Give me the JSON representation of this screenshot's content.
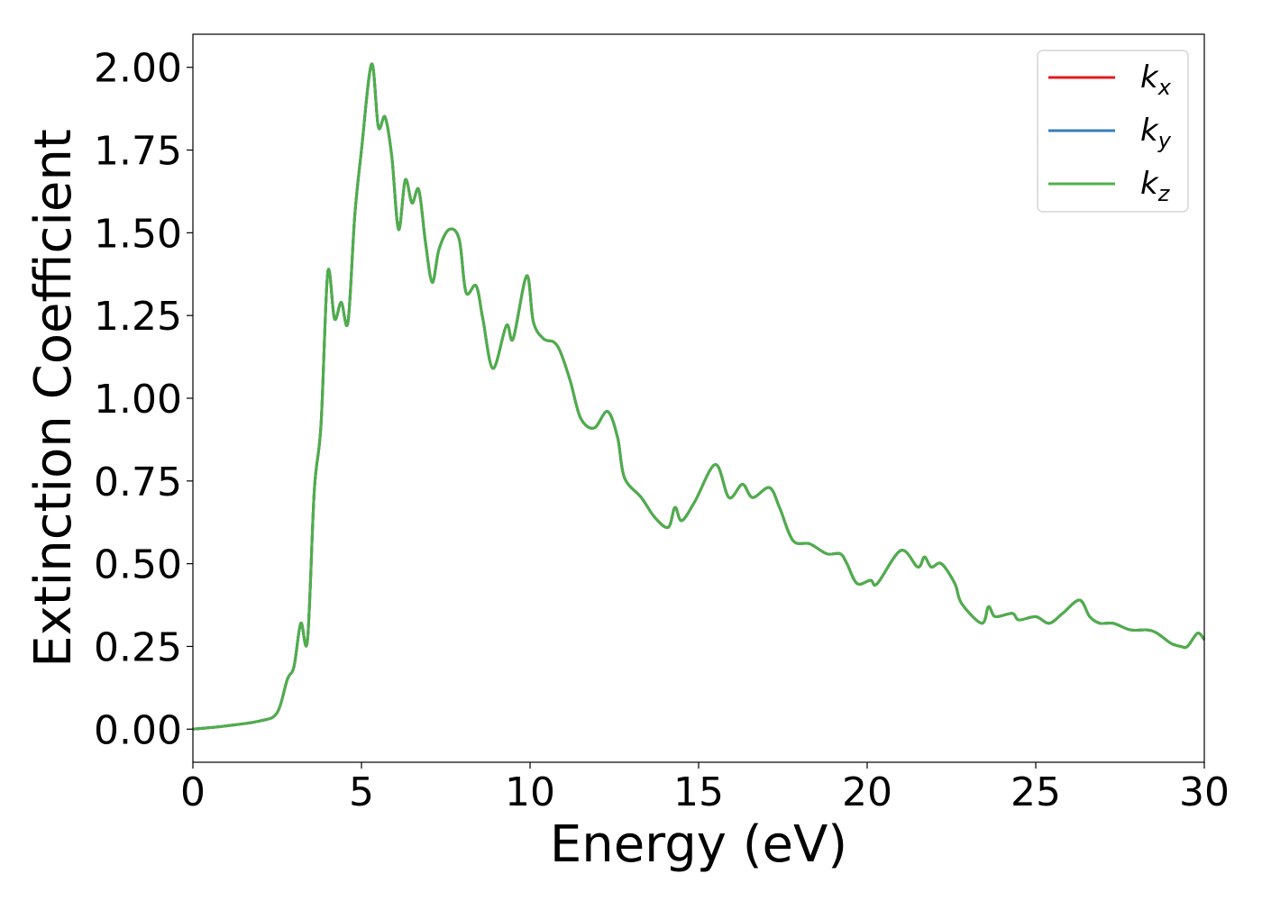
{
  "chart_data": {
    "type": "line",
    "xlabel": "Energy (eV)",
    "ylabel": "Extinction Coefficient",
    "xlim": [
      0,
      30
    ],
    "ylim": [
      -0.1,
      2.1
    ],
    "xticks": [
      0,
      5,
      10,
      15,
      20,
      25,
      30
    ],
    "xtick_labels": [
      "0",
      "5",
      "10",
      "15",
      "20",
      "25",
      "30"
    ],
    "yticks": [
      0,
      0.25,
      0.5,
      0.75,
      1.0,
      1.25,
      1.5,
      1.75,
      2.0
    ],
    "ytick_labels": [
      "0.00",
      "0.25",
      "0.50",
      "0.75",
      "1.00",
      "1.25",
      "1.50",
      "1.75",
      "2.00"
    ],
    "grid": false,
    "legend_position": "top-right",
    "x": [
      0,
      1.0,
      2.0,
      2.5,
      2.8,
      3.0,
      3.2,
      3.4,
      3.6,
      3.8,
      4.0,
      4.2,
      4.4,
      4.6,
      4.8,
      5.0,
      5.3,
      5.5,
      5.7,
      5.9,
      6.1,
      6.3,
      6.5,
      6.7,
      6.9,
      7.1,
      7.3,
      7.6,
      7.9,
      8.1,
      8.4,
      8.6,
      8.9,
      9.3,
      9.5,
      9.9,
      10.1,
      10.4,
      10.7,
      10.9,
      11.2,
      11.5,
      11.9,
      12.3,
      12.6,
      12.8,
      13.3,
      13.7,
      14.1,
      14.3,
      14.5,
      14.9,
      15.5,
      15.9,
      16.3,
      16.6,
      17.1,
      17.4,
      17.8,
      18.3,
      18.8,
      19.2,
      19.4,
      19.7,
      20.1,
      20.3,
      21.0,
      21.5,
      21.7,
      21.9,
      22.2,
      22.6,
      22.8,
      23.4,
      23.6,
      23.8,
      24.3,
      24.5,
      25.0,
      25.4,
      25.8,
      26.3,
      26.6,
      26.9,
      27.3,
      27.8,
      28.3,
      28.6,
      29.0,
      29.3,
      29.5,
      29.8,
      30.0
    ],
    "series": [
      {
        "name": "k_x",
        "color": "#e41a1c",
        "values": [
          0.0,
          0.01,
          0.025,
          0.05,
          0.15,
          0.19,
          0.32,
          0.27,
          0.72,
          0.92,
          1.38,
          1.24,
          1.29,
          1.23,
          1.55,
          1.75,
          2.01,
          1.82,
          1.85,
          1.73,
          1.51,
          1.66,
          1.59,
          1.63,
          1.47,
          1.35,
          1.45,
          1.51,
          1.48,
          1.32,
          1.34,
          1.24,
          1.09,
          1.22,
          1.18,
          1.37,
          1.23,
          1.18,
          1.17,
          1.14,
          1.05,
          0.94,
          0.91,
          0.96,
          0.88,
          0.76,
          0.7,
          0.64,
          0.61,
          0.67,
          0.63,
          0.69,
          0.8,
          0.7,
          0.74,
          0.7,
          0.73,
          0.67,
          0.57,
          0.56,
          0.53,
          0.53,
          0.5,
          0.44,
          0.45,
          0.44,
          0.54,
          0.49,
          0.52,
          0.49,
          0.5,
          0.44,
          0.38,
          0.32,
          0.37,
          0.34,
          0.35,
          0.33,
          0.34,
          0.32,
          0.35,
          0.39,
          0.34,
          0.32,
          0.32,
          0.3,
          0.3,
          0.29,
          0.26,
          0.25,
          0.25,
          0.29,
          0.27
        ]
      },
      {
        "name": "k_y",
        "color": "#377eb8",
        "values": [
          0.0,
          0.01,
          0.025,
          0.05,
          0.15,
          0.19,
          0.32,
          0.27,
          0.72,
          0.92,
          1.38,
          1.24,
          1.29,
          1.23,
          1.55,
          1.75,
          2.01,
          1.82,
          1.85,
          1.73,
          1.51,
          1.66,
          1.59,
          1.63,
          1.47,
          1.35,
          1.45,
          1.51,
          1.48,
          1.32,
          1.34,
          1.24,
          1.09,
          1.22,
          1.18,
          1.37,
          1.23,
          1.18,
          1.17,
          1.14,
          1.05,
          0.94,
          0.91,
          0.96,
          0.88,
          0.76,
          0.7,
          0.64,
          0.61,
          0.67,
          0.63,
          0.69,
          0.8,
          0.7,
          0.74,
          0.7,
          0.73,
          0.67,
          0.57,
          0.56,
          0.53,
          0.53,
          0.5,
          0.44,
          0.45,
          0.44,
          0.54,
          0.49,
          0.52,
          0.49,
          0.5,
          0.44,
          0.38,
          0.32,
          0.37,
          0.34,
          0.35,
          0.33,
          0.34,
          0.32,
          0.35,
          0.39,
          0.34,
          0.32,
          0.32,
          0.3,
          0.3,
          0.29,
          0.26,
          0.25,
          0.25,
          0.29,
          0.27
        ]
      },
      {
        "name": "k_z",
        "color": "#4daf4a",
        "values": [
          0.0,
          0.01,
          0.025,
          0.05,
          0.15,
          0.19,
          0.32,
          0.27,
          0.72,
          0.92,
          1.38,
          1.24,
          1.29,
          1.23,
          1.55,
          1.75,
          2.01,
          1.82,
          1.85,
          1.73,
          1.51,
          1.66,
          1.59,
          1.63,
          1.47,
          1.35,
          1.45,
          1.51,
          1.48,
          1.32,
          1.34,
          1.24,
          1.09,
          1.22,
          1.18,
          1.37,
          1.23,
          1.18,
          1.17,
          1.14,
          1.05,
          0.94,
          0.91,
          0.96,
          0.88,
          0.76,
          0.7,
          0.64,
          0.61,
          0.67,
          0.63,
          0.69,
          0.8,
          0.7,
          0.74,
          0.7,
          0.73,
          0.67,
          0.57,
          0.56,
          0.53,
          0.53,
          0.5,
          0.44,
          0.45,
          0.44,
          0.54,
          0.49,
          0.52,
          0.49,
          0.5,
          0.44,
          0.38,
          0.32,
          0.37,
          0.34,
          0.35,
          0.33,
          0.34,
          0.32,
          0.35,
          0.39,
          0.34,
          0.32,
          0.32,
          0.3,
          0.3,
          0.29,
          0.26,
          0.25,
          0.25,
          0.29,
          0.27
        ]
      }
    ],
    "legend": [
      {
        "base": "k",
        "sub": "x",
        "color": "#e41a1c"
      },
      {
        "base": "k",
        "sub": "y",
        "color": "#377eb8"
      },
      {
        "base": "k",
        "sub": "z",
        "color": "#4daf4a"
      }
    ]
  }
}
